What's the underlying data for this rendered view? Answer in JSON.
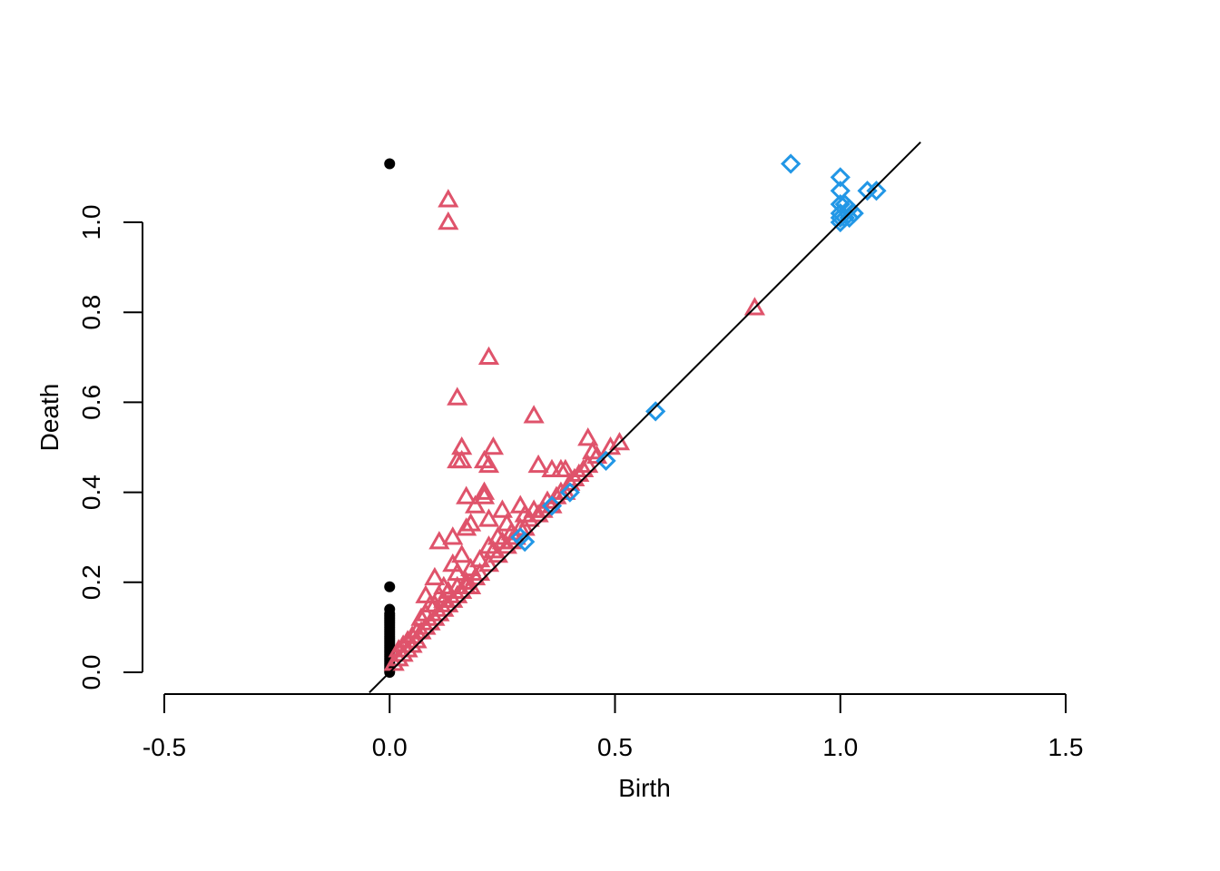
{
  "chart_data": {
    "type": "scatter",
    "title": "",
    "xlabel": "Birth",
    "ylabel": "Death",
    "xlim": [
      -0.5,
      1.5
    ],
    "ylim": [
      0,
      1.15
    ],
    "x_ticks": [
      "-0.5",
      "0.0",
      "0.5",
      "1.0",
      "1.5"
    ],
    "y_ticks": [
      "0.0",
      "0.2",
      "0.4",
      "0.6",
      "0.8",
      "1.0"
    ],
    "x_tick_values": [
      -0.5,
      0,
      0.5,
      1.0,
      1.5
    ],
    "y_tick_values": [
      0,
      0.2,
      0.4,
      0.6,
      0.8,
      1.0
    ],
    "grid": false,
    "reference_line": {
      "slope": 1,
      "intercept": 0,
      "color": "#000000"
    },
    "series": [
      {
        "marker": "filled-circle",
        "color": "#000000",
        "points": [
          [
            0,
            1.13
          ],
          [
            0,
            0.19
          ],
          [
            0,
            0.14
          ],
          [
            0,
            0.13
          ],
          [
            0,
            0.125
          ],
          [
            0,
            0.12
          ],
          [
            0,
            0.115
          ],
          [
            0,
            0.11
          ],
          [
            0,
            0.105
          ],
          [
            0,
            0.1
          ],
          [
            0,
            0.095
          ],
          [
            0,
            0.09
          ],
          [
            0,
            0.085
          ],
          [
            0,
            0.08
          ],
          [
            0,
            0.075
          ],
          [
            0,
            0.07
          ],
          [
            0,
            0.065
          ],
          [
            0,
            0.06
          ],
          [
            0,
            0.055
          ],
          [
            0,
            0.05
          ],
          [
            0,
            0.045
          ],
          [
            0,
            0.04
          ],
          [
            0,
            0.035
          ],
          [
            0,
            0.03
          ],
          [
            0,
            0.025
          ],
          [
            0,
            0.02
          ],
          [
            0,
            0.015
          ],
          [
            0,
            0.01
          ],
          [
            0,
            0.005
          ],
          [
            0,
            0.0
          ]
        ]
      },
      {
        "marker": "open-triangle",
        "color": "#DF536B",
        "points": [
          [
            0.13,
            1.05
          ],
          [
            0.13,
            1.0
          ],
          [
            0.22,
            0.7
          ],
          [
            0.15,
            0.61
          ],
          [
            0.32,
            0.57
          ],
          [
            0.81,
            0.81
          ],
          [
            0.16,
            0.5
          ],
          [
            0.23,
            0.5
          ],
          [
            0.15,
            0.47
          ],
          [
            0.16,
            0.47
          ],
          [
            0.21,
            0.47
          ],
          [
            0.22,
            0.46
          ],
          [
            0.33,
            0.46
          ],
          [
            0.36,
            0.45
          ],
          [
            0.38,
            0.45
          ],
          [
            0.39,
            0.45
          ],
          [
            0.44,
            0.52
          ],
          [
            0.45,
            0.49
          ],
          [
            0.49,
            0.5
          ],
          [
            0.51,
            0.51
          ],
          [
            0.21,
            0.4
          ],
          [
            0.21,
            0.39
          ],
          [
            0.17,
            0.39
          ],
          [
            0.19,
            0.37
          ],
          [
            0.25,
            0.36
          ],
          [
            0.29,
            0.37
          ],
          [
            0.32,
            0.36
          ],
          [
            0.22,
            0.34
          ],
          [
            0.18,
            0.33
          ],
          [
            0.17,
            0.32
          ],
          [
            0.11,
            0.29
          ],
          [
            0.14,
            0.3
          ],
          [
            0.16,
            0.26
          ],
          [
            0.14,
            0.24
          ],
          [
            0.15,
            0.22
          ],
          [
            0.1,
            0.21
          ],
          [
            0.08,
            0.17
          ],
          [
            0.12,
            0.19
          ],
          [
            0.18,
            0.23
          ],
          [
            0.23,
            0.27
          ],
          [
            0.24,
            0.3
          ],
          [
            0.27,
            0.31
          ],
          [
            0.29,
            0.32
          ],
          [
            0.31,
            0.34
          ],
          [
            0.35,
            0.38
          ],
          [
            0.37,
            0.39
          ],
          [
            0.4,
            0.42
          ],
          [
            0.42,
            0.44
          ],
          [
            0.44,
            0.46
          ],
          [
            0.46,
            0.48
          ],
          [
            0.2,
            0.22
          ],
          [
            0.22,
            0.24
          ],
          [
            0.24,
            0.26
          ],
          [
            0.26,
            0.28
          ],
          [
            0.28,
            0.3
          ],
          [
            0.3,
            0.32
          ],
          [
            0.33,
            0.35
          ],
          [
            0.36,
            0.37
          ],
          [
            0.39,
            0.4
          ],
          [
            0.06,
            0.09
          ],
          [
            0.07,
            0.12
          ],
          [
            0.09,
            0.15
          ],
          [
            0.11,
            0.17
          ],
          [
            0.13,
            0.18
          ],
          [
            0.15,
            0.19
          ],
          [
            0.17,
            0.2
          ],
          [
            0.19,
            0.21
          ],
          [
            0.05,
            0.06
          ],
          [
            0.04,
            0.05
          ],
          [
            0.03,
            0.04
          ],
          [
            0.02,
            0.03
          ],
          [
            0.06,
            0.07
          ],
          [
            0.08,
            0.1
          ],
          [
            0.1,
            0.12
          ],
          [
            0.12,
            0.14
          ],
          [
            0.14,
            0.16
          ],
          [
            0.16,
            0.18
          ],
          [
            0.18,
            0.19
          ],
          [
            0.02,
            0.05
          ],
          [
            0.03,
            0.06
          ],
          [
            0.05,
            0.08
          ],
          [
            0.07,
            0.09
          ],
          [
            0.09,
            0.11
          ],
          [
            0.11,
            0.13
          ],
          [
            0.13,
            0.15
          ],
          [
            0.15,
            0.17
          ],
          [
            0.17,
            0.19
          ],
          [
            0.25,
            0.29
          ],
          [
            0.27,
            0.29
          ],
          [
            0.34,
            0.36
          ],
          [
            0.38,
            0.4
          ],
          [
            0.41,
            0.43
          ],
          [
            0.43,
            0.45
          ],
          [
            0.01,
            0.02
          ],
          [
            0.04,
            0.07
          ],
          [
            0.08,
            0.13
          ],
          [
            0.1,
            0.15
          ],
          [
            0.12,
            0.16
          ],
          [
            0.2,
            0.25
          ],
          [
            0.22,
            0.28
          ],
          [
            0.26,
            0.33
          ],
          [
            0.3,
            0.35
          ]
        ]
      },
      {
        "marker": "open-diamond",
        "color": "#2297E6",
        "points": [
          [
            0.89,
            1.13
          ],
          [
            1.0,
            1.1
          ],
          [
            1.0,
            1.07
          ],
          [
            1.06,
            1.07
          ],
          [
            1.08,
            1.07
          ],
          [
            1.0,
            1.04
          ],
          [
            1.01,
            1.04
          ],
          [
            1.02,
            1.03
          ],
          [
            1.03,
            1.02
          ],
          [
            1.0,
            1.02
          ],
          [
            1.0,
            1.01
          ],
          [
            1.01,
            1.01
          ],
          [
            1.02,
            1.01
          ],
          [
            1.0,
            1.0
          ],
          [
            0.59,
            0.58
          ],
          [
            0.48,
            0.47
          ],
          [
            0.4,
            0.4
          ],
          [
            0.36,
            0.37
          ],
          [
            0.29,
            0.3
          ],
          [
            0.3,
            0.29
          ]
        ]
      }
    ]
  }
}
